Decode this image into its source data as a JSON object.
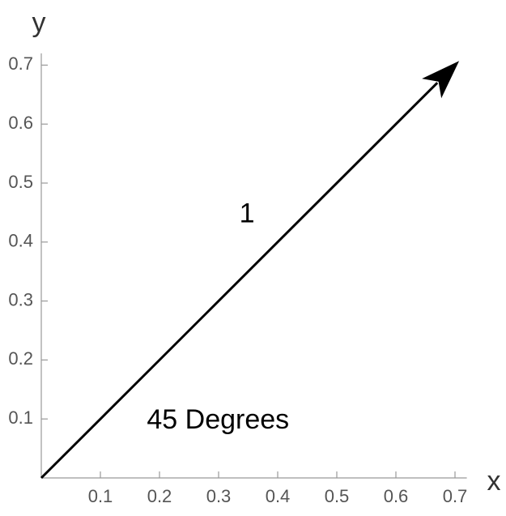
{
  "chart_data": {
    "type": "vector",
    "x_label": "x",
    "y_label": "y",
    "xlim": [
      0,
      0.72
    ],
    "ylim": [
      0,
      0.72
    ],
    "xticks": [
      0.1,
      0.2,
      0.3,
      0.4,
      0.5,
      0.6,
      0.7
    ],
    "yticks": [
      0.1,
      0.2,
      0.3,
      0.4,
      0.5,
      0.6,
      0.7
    ],
    "series": [
      {
        "color": "#000000",
        "x": [
          0,
          0.707
        ],
        "values": [
          0,
          0.707
        ]
      }
    ],
    "annotations": [
      {
        "text": "1",
        "x": 0.348,
        "y": 0.446
      },
      {
        "text": "45 Degrees",
        "x": 0.299,
        "y": 0.096
      }
    ]
  }
}
